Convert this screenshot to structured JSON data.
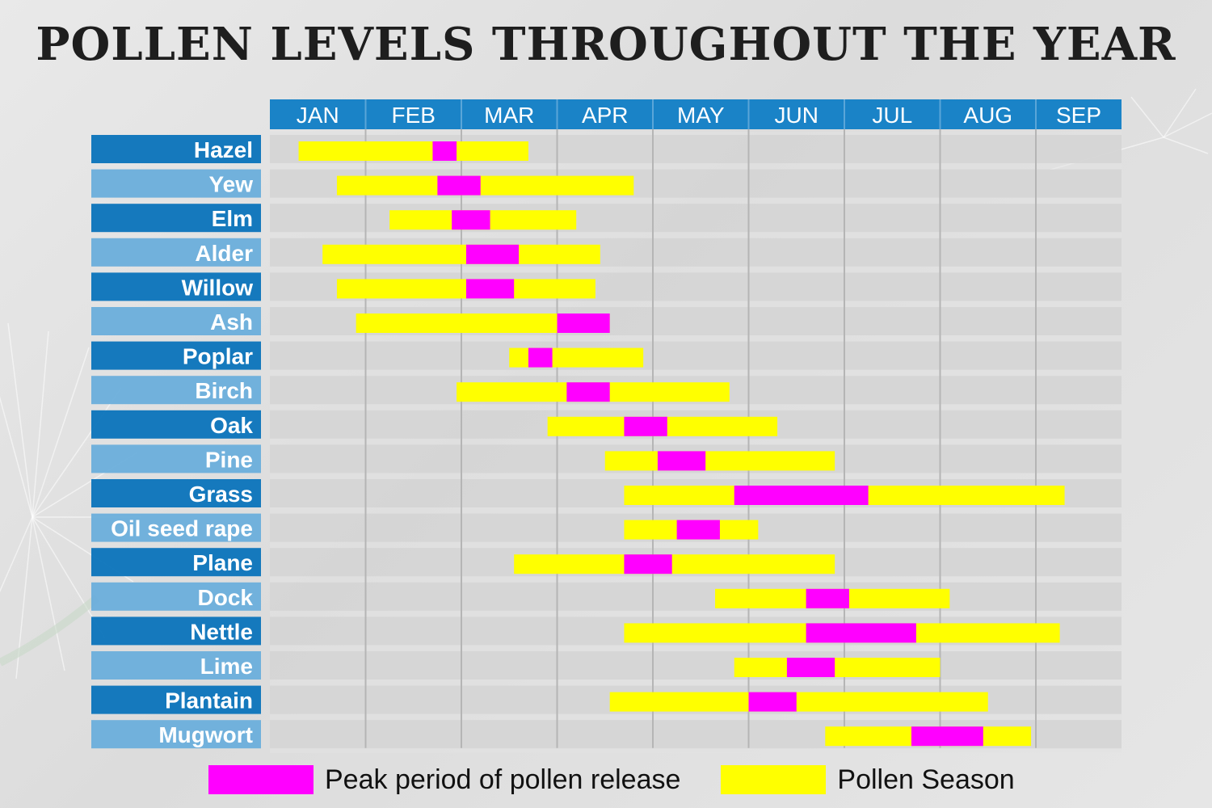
{
  "title": "POLLEN LEVELS THROUGHOUT THE YEAR",
  "colors": {
    "season": "#ffff00",
    "peak": "#ff00ff",
    "header": "#1a83c7",
    "row_label_dark": "#0a73bb",
    "row_label_light": "#6aaedb",
    "row_band": "#d4d4d4",
    "gridline": "#b5b5b5"
  },
  "legend": {
    "peak_label": "Peak period of pollen release",
    "season_label": "Pollen Season"
  },
  "chart_data": {
    "type": "gantt",
    "title": "POLLEN LEVELS THROUGHOUT THE YEAR",
    "x_unit": "months (1.0 = start of JAN)",
    "months": [
      "JAN",
      "FEB",
      "MAR",
      "APR",
      "MAY",
      "JUN",
      "JUL",
      "AUG",
      "SEP"
    ],
    "xlim": [
      1.0,
      9.95
    ],
    "series": [
      {
        "name": "Pollen Season",
        "key": "season"
      },
      {
        "name": "Peak period of pollen release",
        "key": "peak"
      }
    ],
    "rows": [
      {
        "name": "Hazel",
        "season": [
          1.3,
          3.7
        ],
        "peak": [
          2.7,
          2.95
        ]
      },
      {
        "name": "Yew",
        "season": [
          1.7,
          4.8
        ],
        "peak": [
          2.75,
          3.2
        ]
      },
      {
        "name": "Elm",
        "season": [
          2.25,
          4.2
        ],
        "peak": [
          2.9,
          3.3
        ]
      },
      {
        "name": "Alder",
        "season": [
          1.55,
          4.45
        ],
        "peak": [
          3.05,
          3.6
        ]
      },
      {
        "name": "Willow",
        "season": [
          1.7,
          4.4
        ],
        "peak": [
          3.05,
          3.55
        ]
      },
      {
        "name": "Ash",
        "season": [
          1.9,
          4.55
        ],
        "peak": [
          4.0,
          4.55
        ]
      },
      {
        "name": "Poplar",
        "season": [
          3.5,
          4.9
        ],
        "peak": [
          3.7,
          3.95
        ]
      },
      {
        "name": "Birch",
        "season": [
          2.95,
          5.8
        ],
        "peak": [
          4.1,
          4.55
        ]
      },
      {
        "name": "Oak",
        "season": [
          3.9,
          6.3
        ],
        "peak": [
          4.7,
          5.15
        ]
      },
      {
        "name": "Pine",
        "season": [
          4.5,
          6.9
        ],
        "peak": [
          5.05,
          5.55
        ]
      },
      {
        "name": "Grass",
        "season": [
          4.7,
          9.3
        ],
        "peak": [
          5.85,
          7.25
        ]
      },
      {
        "name": "Oil seed rape",
        "season": [
          4.7,
          6.1
        ],
        "peak": [
          5.25,
          5.7
        ]
      },
      {
        "name": "Plane",
        "season": [
          3.55,
          6.9
        ],
        "peak": [
          4.7,
          5.2
        ]
      },
      {
        "name": "Dock",
        "season": [
          5.65,
          8.1
        ],
        "peak": [
          6.6,
          7.05
        ]
      },
      {
        "name": "Nettle",
        "season": [
          4.7,
          9.25
        ],
        "peak": [
          6.6,
          7.75
        ]
      },
      {
        "name": "Lime",
        "season": [
          5.85,
          8.0
        ],
        "peak": [
          6.4,
          6.9
        ]
      },
      {
        "name": "Plantain",
        "season": [
          4.55,
          8.5
        ],
        "peak": [
          6.0,
          6.5
        ]
      },
      {
        "name": "Mugwort",
        "season": [
          6.8,
          8.95
        ],
        "peak": [
          7.7,
          8.45
        ]
      }
    ]
  }
}
